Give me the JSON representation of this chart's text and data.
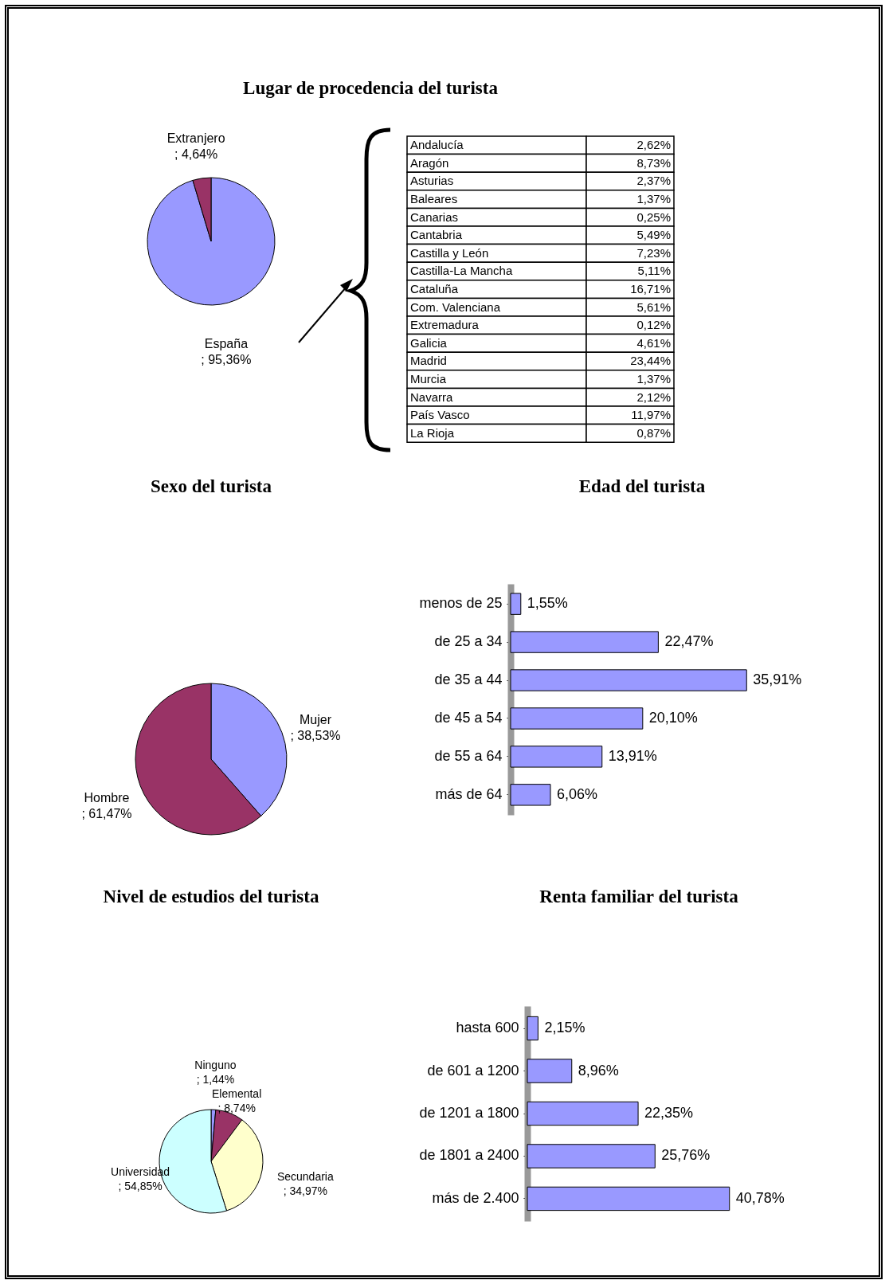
{
  "chart_data": [
    {
      "type": "pie",
      "title": "Lugar de procedencia del turista",
      "categories": [
        "España",
        "Extranjero"
      ],
      "values": [
        95.36,
        4.64
      ],
      "value_labels": [
        "; 95,36%",
        "; 4,64%"
      ],
      "colors": [
        "#9999ff",
        "#993366"
      ]
    },
    {
      "type": "other",
      "categories": [
        "Andalucía",
        "Aragón",
        "Asturias",
        "Baleares",
        "Canarias",
        "Cantabria",
        "Castilla y León",
        "Castilla-La Mancha",
        "Cataluña",
        "Com. Valenciana",
        "Extremadura",
        "Galicia",
        "Madrid",
        "Murcia",
        "Navarra",
        "País Vasco",
        "La Rioja"
      ],
      "values": [
        2.62,
        8.73,
        2.37,
        1.37,
        0.25,
        5.49,
        7.23,
        5.11,
        16.71,
        5.61,
        0.12,
        4.61,
        23.44,
        1.37,
        2.12,
        11.97,
        0.87
      ],
      "value_labels": [
        "2,62%",
        "8,73%",
        "2,37%",
        "1,37%",
        "0,25%",
        "5,49%",
        "7,23%",
        "5,11%",
        "16,71%",
        "5,61%",
        "0,12%",
        "4,61%",
        "23,44%",
        "1,37%",
        "2,12%",
        "11,97%",
        "0,87%"
      ]
    },
    {
      "type": "pie",
      "title": "Sexo del turista",
      "categories": [
        "Mujer",
        "Hombre"
      ],
      "values": [
        38.53,
        61.47
      ],
      "value_labels": [
        "; 38,53%",
        "; 61,47%"
      ],
      "colors": [
        "#9999ff",
        "#993366"
      ]
    },
    {
      "type": "bar",
      "orientation": "horizontal",
      "title": "Edad del turista",
      "categories": [
        "menos de 25",
        "de 25 a 34",
        "de 35 a 44",
        "de 45 a 54",
        "de 55 a 64",
        "más de 64"
      ],
      "values": [
        1.55,
        22.47,
        35.91,
        20.1,
        13.91,
        6.06
      ],
      "value_labels": [
        "1,55%",
        "22,47%",
        "35,91%",
        "20,10%",
        "13,91%",
        "6,06%"
      ],
      "color": "#9999ff"
    },
    {
      "type": "pie",
      "title": "Nivel de estudios del turista",
      "categories": [
        "Ninguno",
        "Elemental",
        "Secundaria",
        "Universidad"
      ],
      "values": [
        1.44,
        8.74,
        34.97,
        54.85
      ],
      "value_labels": [
        "; 1,44%",
        "; 8,74%",
        "; 34,97%",
        "; 54,85%"
      ],
      "colors": [
        "#9999ff",
        "#993366",
        "#ffffcc",
        "#ccffff"
      ]
    },
    {
      "type": "bar",
      "orientation": "horizontal",
      "title": "Renta familiar del turista",
      "categories": [
        "hasta 600",
        "de 601 a 1200",
        "de 1201 a 1800",
        "de 1801 a 2400",
        "más de 2.400"
      ],
      "values": [
        2.15,
        8.96,
        22.35,
        25.76,
        40.78
      ],
      "value_labels": [
        "2,15%",
        "8,96%",
        "22,35%",
        "25,76%",
        "40,78%"
      ],
      "color": "#9999ff"
    }
  ]
}
